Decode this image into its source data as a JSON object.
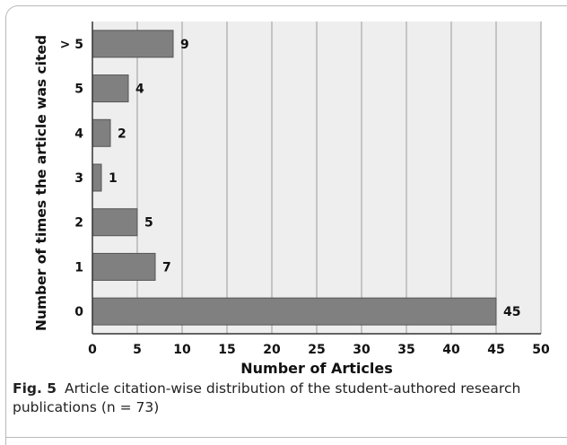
{
  "figure": {
    "label": "Fig. 5",
    "caption": "Article citation-wise distribution of the student-authored research publications (n = 73)"
  },
  "chart_data": {
    "type": "bar",
    "orientation": "horizontal",
    "categories": [
      "0",
      "1",
      "2",
      "3",
      "4",
      "5",
      "> 5"
    ],
    "values": [
      45,
      7,
      5,
      1,
      2,
      4,
      9
    ],
    "data_labels": [
      "45",
      "7",
      "5",
      "1",
      "2",
      "4",
      "9"
    ],
    "xlabel": "Number of Articles",
    "ylabel": "Number of times the article was cited",
    "xlim": [
      0,
      50
    ],
    "x_ticks": [
      "0",
      "5",
      "10",
      "15",
      "20",
      "25",
      "30",
      "35",
      "40",
      "45",
      "50"
    ],
    "grid": true,
    "colors": {
      "bar_fill": "#808080",
      "bar_stroke": "#555555",
      "plot_background": "#eeeeee",
      "grid": "#9a9a9a"
    }
  }
}
